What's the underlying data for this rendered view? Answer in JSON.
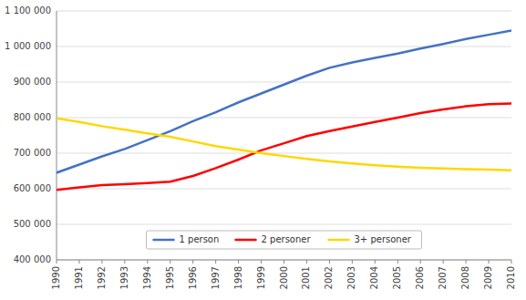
{
  "chart_data": {
    "type": "line",
    "x": [
      1990,
      1991,
      1992,
      1993,
      1994,
      1995,
      1996,
      1997,
      1998,
      1999,
      2000,
      2001,
      2002,
      2003,
      2004,
      2005,
      2006,
      2007,
      2008,
      2009,
      2010
    ],
    "series": [
      {
        "name": "1 person",
        "color": "#4472C4",
        "values": [
          645000,
          668000,
          691000,
          712000,
          737000,
          762000,
          790000,
          815000,
          843000,
          868000,
          893000,
          918000,
          940000,
          955000,
          968000,
          980000,
          994000,
          1007000,
          1021000,
          1033000,
          1045000
        ]
      },
      {
        "name": "2 personer",
        "color": "#FF0000",
        "values": [
          597000,
          604000,
          610000,
          613000,
          616000,
          620000,
          636000,
          658000,
          682000,
          708000,
          728000,
          748000,
          762000,
          775000,
          788000,
          800000,
          813000,
          823000,
          832000,
          838000,
          840000
        ]
      },
      {
        "name": "3+ personer",
        "color": "#FFD700",
        "values": [
          798000,
          788000,
          776000,
          766000,
          756000,
          746000,
          733000,
          720000,
          710000,
          700000,
          692000,
          684000,
          677000,
          671000,
          666000,
          662000,
          659000,
          657000,
          655000,
          654000,
          652000
        ]
      }
    ],
    "xlim": [
      1990,
      2010
    ],
    "xticks": [
      1990,
      1991,
      1992,
      1993,
      1994,
      1995,
      1996,
      1997,
      1998,
      1999,
      2000,
      2001,
      2002,
      2003,
      2004,
      2005,
      2006,
      2007,
      2008,
      2009,
      2010
    ],
    "ylim": [
      400000,
      1100000
    ],
    "yticks": [
      {
        "value": 400000,
        "label": "400 000"
      },
      {
        "value": 500000,
        "label": "500 000"
      },
      {
        "value": 600000,
        "label": "600 000"
      },
      {
        "value": 700000,
        "label": "700 000"
      },
      {
        "value": 800000,
        "label": "800 000"
      },
      {
        "value": 900000,
        "label": "900 000"
      },
      {
        "value": 1000000,
        "label": "1 000 000"
      },
      {
        "value": 1100000,
        "label": "1 100 000"
      }
    ],
    "grid": true,
    "legend": "bottom"
  }
}
